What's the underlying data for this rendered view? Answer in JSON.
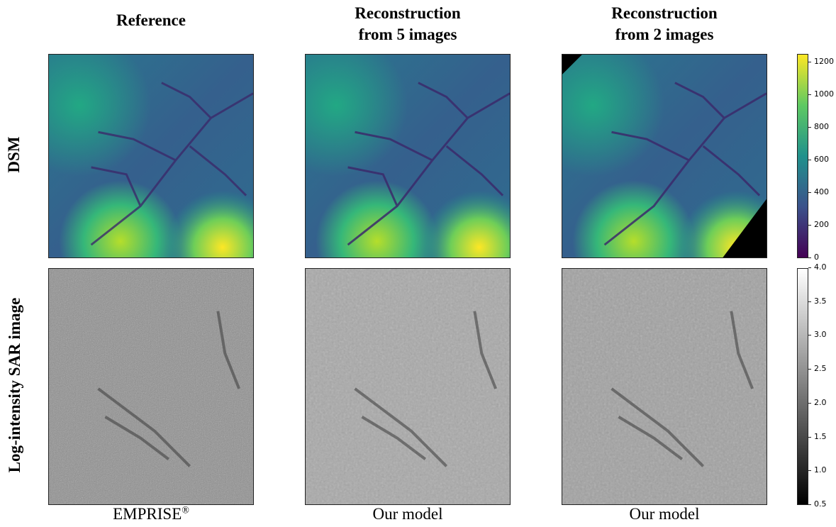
{
  "columns": [
    {
      "title_line1": "Reference",
      "title_line2": "",
      "caption": "EMPRISE",
      "caption_sup": "®"
    },
    {
      "title_line1": "Reconstruction",
      "title_line2": "from 5 images",
      "caption": "Our model",
      "caption_sup": ""
    },
    {
      "title_line1": "Reconstruction",
      "title_line2": "from 2 images",
      "caption": "Our model",
      "caption_sup": ""
    }
  ],
  "rows": [
    {
      "label": "DSM"
    },
    {
      "label": "Log-intensity SAR image"
    }
  ],
  "colorbars": {
    "dsm": {
      "colormap": "viridis",
      "range": [
        0,
        1250
      ],
      "ticks": [
        "1200",
        "1000",
        "800",
        "600",
        "400",
        "200",
        "0"
      ]
    },
    "sar": {
      "colormap": "gray",
      "range": [
        0.5,
        4.0
      ],
      "ticks": [
        "4.0",
        "3.5",
        "3.0",
        "2.5",
        "2.0",
        "1.5",
        "1.0",
        "0.5"
      ]
    }
  }
}
